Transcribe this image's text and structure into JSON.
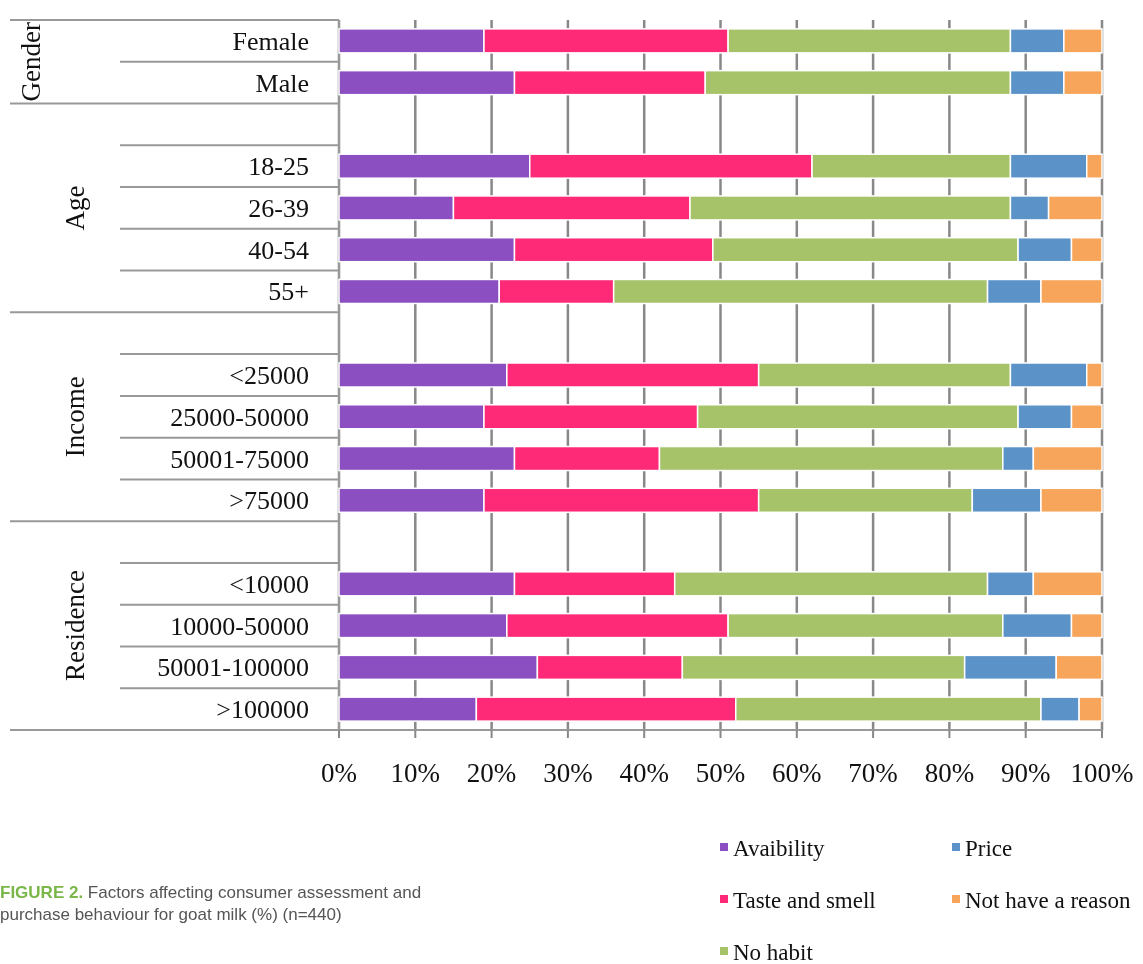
{
  "chart_data": {
    "type": "bar",
    "orientation": "horizontal",
    "stacked": true,
    "categories": [
      "Female",
      "Male",
      null,
      "18-25",
      "26-39",
      "40-54",
      "55+",
      null,
      "<25000",
      "25000-50000",
      "50001-75000",
      ">75000",
      null,
      "<10000",
      "10000-50000",
      "50001-100000",
      ">100000"
    ],
    "series": [
      {
        "name": "Avaibility",
        "color": "#8b4fc2",
        "values": [
          19,
          23,
          null,
          25,
          15,
          23,
          21,
          null,
          22,
          19,
          23,
          19,
          null,
          23,
          22,
          26,
          18
        ]
      },
      {
        "name": "Taste and smell",
        "color": "#ff2a77",
        "values": [
          32,
          25,
          null,
          37,
          31,
          26,
          15,
          null,
          33,
          28,
          19,
          36,
          null,
          21,
          29,
          19,
          34
        ]
      },
      {
        "name": "No habit",
        "color": "#a6c36a",
        "values": [
          37,
          40,
          null,
          26,
          42,
          40,
          49,
          null,
          33,
          42,
          45,
          28,
          null,
          41,
          36,
          37,
          40
        ]
      },
      {
        "name": "Price",
        "color": "#5b93c9",
        "values": [
          7,
          7,
          null,
          10,
          5,
          7,
          7,
          null,
          10,
          7,
          4,
          9,
          null,
          6,
          9,
          12,
          5
        ]
      },
      {
        "name": "Not have a reason",
        "color": "#f7a55a",
        "values": [
          5,
          5,
          null,
          2,
          7,
          4,
          8,
          null,
          2,
          4,
          9,
          8,
          null,
          9,
          4,
          6,
          3
        ]
      }
    ],
    "xlim": [
      0,
      100
    ],
    "xticks": [
      {
        "value": 0,
        "label": "0%"
      },
      {
        "value": 10,
        "label": "10%"
      },
      {
        "value": 20,
        "label": "20%"
      },
      {
        "value": 30,
        "label": "30%"
      },
      {
        "value": 40,
        "label": "40%"
      },
      {
        "value": 50,
        "label": "50%"
      },
      {
        "value": 60,
        "label": "60%"
      },
      {
        "value": 70,
        "label": "70%"
      },
      {
        "value": 80,
        "label": "80%"
      },
      {
        "value": 90,
        "label": "90%"
      },
      {
        "value": 100,
        "label": "100%"
      }
    ],
    "grid": "x",
    "legend": "bottom",
    "annotations": [
      "Gender",
      "Age",
      "Income",
      "Residence",
      "FIGURE 2. Factors affecting consumer assessment and purchase behaviour for goat milk (%) (n=440)"
    ]
  }
}
